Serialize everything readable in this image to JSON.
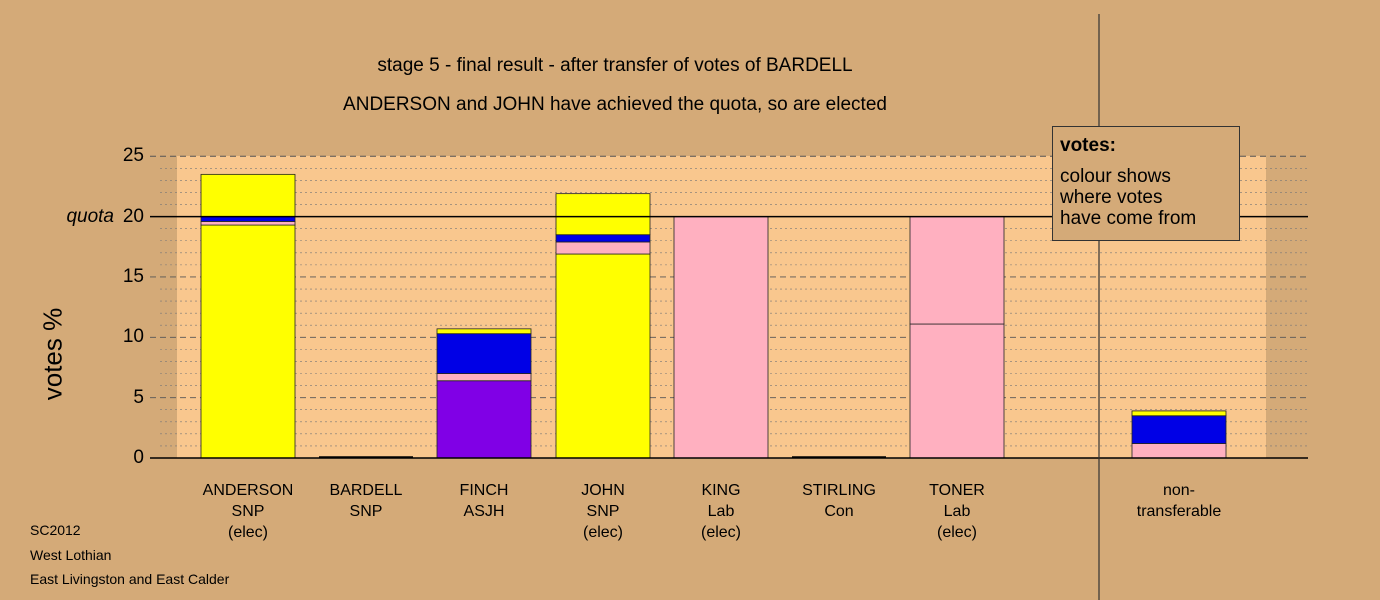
{
  "title": "stage 5 - final result - after transfer of votes of BARDELL",
  "subtitle": "ANDERSON and JOHN have achieved the quota, so are elected",
  "legend": {
    "title": "votes:",
    "body": "colour shows\nwhere votes\nhave come from"
  },
  "footer": [
    "SC2012",
    "West Lothian",
    "East Livingston and East Calder"
  ],
  "colors": {
    "background": "#d4aa78",
    "plot_area": "#f9c78e",
    "snp": "#ffff00",
    "lab": "#ffb0c0",
    "asjh": "#8000e6",
    "blue": "#0000e6"
  },
  "chart_data": {
    "type": "bar",
    "stacked": true,
    "ylabel": "votes %",
    "ylim": [
      0,
      25
    ],
    "yticks": [
      {
        "value": 0,
        "label": "0"
      },
      {
        "value": 5,
        "label": "5"
      },
      {
        "value": 10,
        "label": "10"
      },
      {
        "value": 15,
        "label": "15"
      },
      {
        "value": 20,
        "label": "20"
      },
      {
        "value": 25,
        "label": "25"
      }
    ],
    "quota": {
      "value": 20,
      "label": "quota"
    },
    "grid": true,
    "categories": [
      {
        "lines": [
          "ANDERSON",
          "SNP",
          "(elec)"
        ]
      },
      {
        "lines": [
          "BARDELL",
          "SNP"
        ]
      },
      {
        "lines": [
          "FINCH",
          "ASJH"
        ]
      },
      {
        "lines": [
          "JOHN",
          "SNP",
          "(elec)"
        ]
      },
      {
        "lines": [
          "KING",
          "Lab",
          "(elec)"
        ]
      },
      {
        "lines": [
          "STIRLING",
          "Con"
        ]
      },
      {
        "lines": [
          "TONER",
          "Lab",
          "(elec)"
        ]
      },
      {
        "lines": [
          "non-",
          "transferable"
        ]
      }
    ],
    "bars": [
      {
        "segments": [
          {
            "color": "yellow",
            "value": 19.3
          },
          {
            "color": "pink",
            "value": 0.3
          },
          {
            "color": "blue",
            "value": 0.4
          },
          {
            "color": "yellow",
            "value": 3.5
          }
        ]
      },
      {
        "segments": []
      },
      {
        "segments": [
          {
            "color": "purple",
            "value": 6.4
          },
          {
            "color": "pink",
            "value": 0.6
          },
          {
            "color": "blue",
            "value": 3.3
          },
          {
            "color": "yellow",
            "value": 0.4
          }
        ]
      },
      {
        "segments": [
          {
            "color": "yellow",
            "value": 16.9
          },
          {
            "color": "pink",
            "value": 1.0
          },
          {
            "color": "blue",
            "value": 0.6
          },
          {
            "color": "yellow",
            "value": 3.4
          }
        ]
      },
      {
        "segments": [
          {
            "color": "pink",
            "value": 20.0
          }
        ]
      },
      {
        "segments": []
      },
      {
        "segments": [
          {
            "color": "pink",
            "value": 11.1
          },
          {
            "color": "pink",
            "value": 8.9
          }
        ]
      },
      {
        "segments": [
          {
            "color": "pink",
            "value": 1.2
          },
          {
            "color": "blue",
            "value": 2.3
          },
          {
            "color": "yellow",
            "value": 0.4
          }
        ]
      }
    ]
  }
}
